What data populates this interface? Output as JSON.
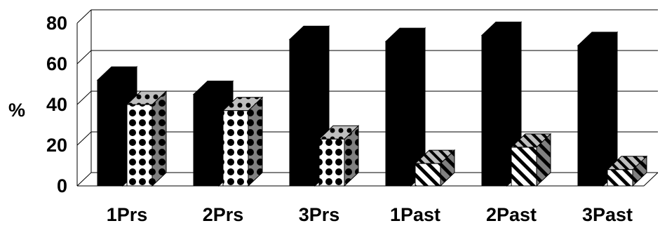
{
  "chart_data": {
    "type": "bar",
    "style": "3d-clustered",
    "ylabel": "%",
    "ylim": [
      0,
      80
    ],
    "yticks": [
      "0",
      "20",
      "40",
      "60",
      "80"
    ],
    "grid": true,
    "categories": [
      "1Prs",
      "2Prs",
      "3Prs",
      "1Past",
      "2Past",
      "3Past"
    ],
    "series": [
      {
        "values": [
          52,
          45,
          72,
          71,
          74,
          69
        ],
        "fill": "solid",
        "color": "#000000"
      },
      {
        "values": [
          40,
          37,
          23,
          11,
          19,
          8
        ],
        "fill": "pattern",
        "pattern": [
          "dots",
          "dots",
          "dots",
          "stripes",
          "stripes",
          "stripes"
        ],
        "color": "#000000"
      }
    ]
  }
}
